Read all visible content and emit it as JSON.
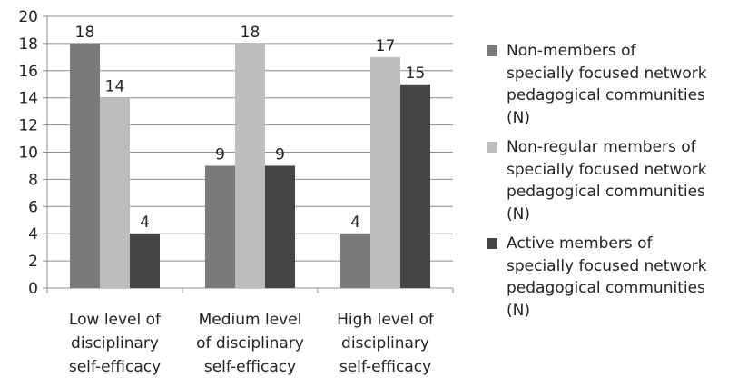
{
  "chart_data": {
    "type": "bar",
    "title": "",
    "xlabel": "",
    "ylabel": "",
    "ylim": [
      0,
      20
    ],
    "yticks": [
      0,
      2,
      4,
      6,
      8,
      10,
      12,
      14,
      16,
      18,
      20
    ],
    "grid": true,
    "legend_position": "right",
    "categories": [
      [
        "Low level of",
        "disciplinary",
        "self-efficacy"
      ],
      [
        "Medium level",
        "of disciplinary",
        "self-efficacy"
      ],
      [
        "High level of",
        "disciplinary",
        "self-efficacy"
      ]
    ],
    "series": [
      {
        "name": "Non-members of specially focused network pedagogical communities (N)",
        "legend_lines": [
          "Non-members of",
          "specially focused network",
          "pedagogical communities",
          "(N)"
        ],
        "color": "#7a7a7a",
        "values": [
          18,
          9,
          4
        ]
      },
      {
        "name": "Non-regular members of specially focused network pedagogical communities (N)",
        "legend_lines": [
          "Non-regular members of",
          "specially focused network",
          "pedagogical communities",
          "(N)"
        ],
        "color": "#bdbdbd",
        "values": [
          14,
          18,
          17
        ]
      },
      {
        "name": "Active members of specially focused network pedagogical communities (N)",
        "legend_lines": [
          "Active members of",
          "specially focused network",
          "pedagogical communities",
          "(N)"
        ],
        "color": "#454545",
        "values": [
          4,
          9,
          15
        ]
      }
    ]
  }
}
